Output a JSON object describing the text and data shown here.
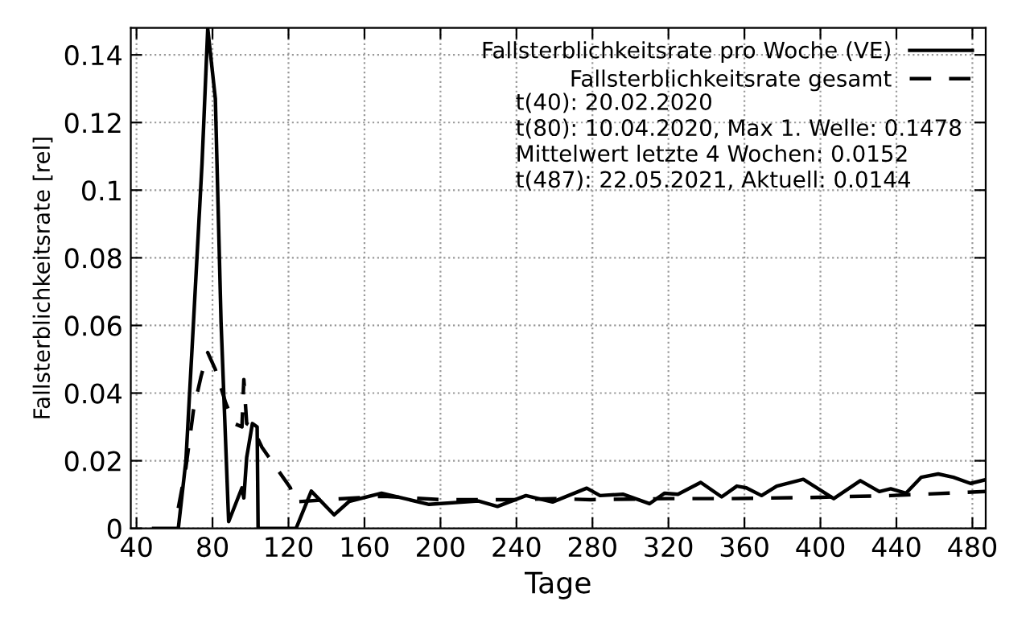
{
  "chart_data": {
    "type": "line",
    "xlabel": "Tage",
    "ylabel": "Fallsterblichkeitsrate [rel]",
    "xlim": [
      37,
      487
    ],
    "ylim": [
      0,
      0.148
    ],
    "xticks": [
      40,
      80,
      120,
      160,
      200,
      240,
      280,
      320,
      360,
      400,
      440,
      480
    ],
    "yticks": [
      0,
      0.02,
      0.04,
      0.06,
      0.08,
      0.1,
      0.12,
      0.14
    ],
    "grid": true,
    "legend": "top right",
    "annotations": [
      "t(40): 20.02.2020\nt(80): 10.04.2020, Max 1. Welle: 0.1478\nMittelwert letzte 4 Wochen: 0.0152\nt(487): 22.05.2021, Aktuell: 0.0144"
    ],
    "series": [
      {
        "name": "Fallsterblichkeitsrate pro Woche (VE)",
        "color": "#000000",
        "line_style": "solid",
        "x": [
          49,
          62,
          66,
          70,
          74.5,
          77.5,
          81.5,
          84.5,
          88.5,
          92,
          95.5,
          96.5,
          98,
          101,
          103.5,
          104,
          124,
          132,
          144,
          152,
          169,
          194,
          220,
          230,
          245,
          259,
          277,
          284,
          296,
          310,
          318,
          325,
          337,
          348,
          356,
          361,
          369,
          377,
          391,
          407,
          421,
          431,
          437,
          445,
          453,
          462,
          470,
          479,
          487
        ],
        "values": [
          0,
          0,
          0.02,
          0.061,
          0.108,
          0.1478,
          0.127,
          0.061,
          0.002,
          0.007,
          0.012,
          0.009,
          0.021,
          0.031,
          0.03,
          0,
          0,
          0.011,
          0.004,
          0.008,
          0.0104,
          0.0071,
          0.0081,
          0.0065,
          0.0097,
          0.0078,
          0.0119,
          0.0097,
          0.0101,
          0.0073,
          0.0104,
          0.0101,
          0.0136,
          0.0093,
          0.0125,
          0.012,
          0.0097,
          0.0125,
          0.0145,
          0.0088,
          0.0141,
          0.0109,
          0.0117,
          0.0104,
          0.0151,
          0.0161,
          0.0151,
          0.0133,
          0.0144
        ]
      },
      {
        "name": "Fallsterblichkeitsrate gesamt",
        "color": "#000000",
        "line_style": "dashed",
        "x": [
          62,
          66,
          70,
          74,
          77.5,
          81.5,
          87,
          91.5,
          95.5,
          96.5,
          98,
          101,
          106,
          121,
          123,
          140,
          170,
          200,
          240,
          260,
          279,
          320,
          352,
          400,
          437,
          487
        ],
        "values": [
          0.006,
          0.018,
          0.035,
          0.045,
          0.052,
          0.047,
          0.037,
          0.031,
          0.03,
          0.044,
          0.031,
          0.03,
          0.024,
          0.012,
          0.0078,
          0.0085,
          0.0095,
          0.0085,
          0.0085,
          0.0088,
          0.0085,
          0.0088,
          0.0088,
          0.0092,
          0.0097,
          0.0109
        ]
      }
    ]
  }
}
